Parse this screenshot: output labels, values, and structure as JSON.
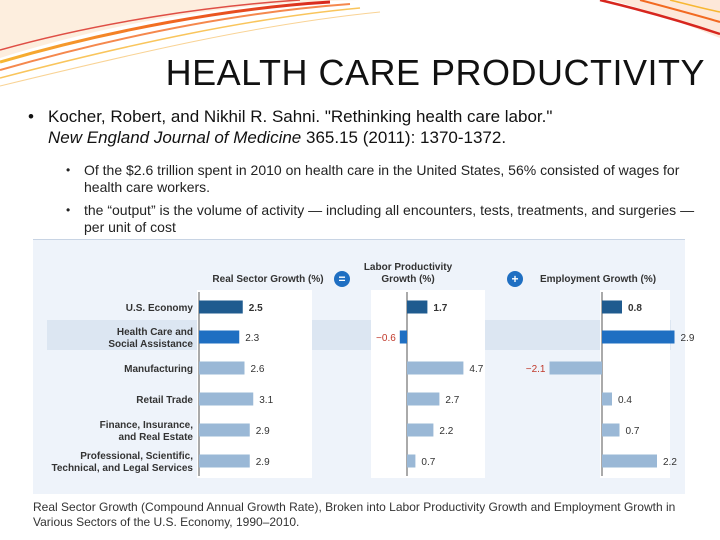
{
  "slide": {
    "title": "HEALTH CARE PRODUCTIVITY",
    "bullet_symbol": "•",
    "citation": {
      "before": "Kocher, Robert, and Nikhil R. Sahni. \"Rethinking health care labor.\"",
      "journal": "New England Journal of Medicine",
      "after": " 365.15 (2011): 1370-1372."
    },
    "sub_bullets": [
      "Of the $2.6 trillion spent in 2010 on health care in the United States, 56% consisted of wages for health care workers.",
      "the “output” is the volume of activity — including all encounters, tests, treatments, and surgeries — per unit of cost"
    ],
    "caption": "Real Sector Growth (Compound Annual Growth Rate), Broken into Labor Productivity Growth and Employment Growth in Various Sectors of the U.S. Economy, 1990–2010."
  },
  "colors": {
    "dark_bar": "#1f5b8f",
    "highlight_bar": "#1f6fc2",
    "light_bar": "#9ab8d6",
    "band": "#dce6f2",
    "panel": "#ffffff",
    "operator": "#1f6fc2",
    "negative_text": "#c0392b"
  },
  "chart_data": {
    "type": "bar",
    "operators": [
      "=",
      "+"
    ],
    "categories": [
      "U.S. Economy",
      "Health Care and\nSocial Assistance",
      "Manufacturing",
      "Retail Trade",
      "Finance, Insurance,\nand Real Estate",
      "Professional, Scientific,\nTechnical, and Legal Services"
    ],
    "highlight_index": 1,
    "series": [
      {
        "name": "Real Sector Growth (%)",
        "values": [
          2.5,
          2.3,
          2.6,
          3.1,
          2.9,
          2.9
        ],
        "labels": [
          "2.5",
          "2.3",
          "2.6",
          "3.1",
          "2.9",
          "2.9"
        ],
        "range": [
          0,
          4
        ]
      },
      {
        "name": "Labor Productivity\nGrowth (%)",
        "values": [
          1.7,
          -0.6,
          4.7,
          2.7,
          2.2,
          0.7
        ],
        "labels": [
          "1.7",
          "−0.6",
          "4.7",
          "2.7",
          "2.2",
          "0.7"
        ],
        "range": [
          -1,
          5
        ]
      },
      {
        "name": "Employment Growth (%)",
        "values": [
          0.8,
          2.9,
          -2.1,
          0.4,
          0.7,
          2.2
        ],
        "labels": [
          "0.8",
          "2.9",
          "−2.1",
          "0.4",
          "0.7",
          "2.2"
        ],
        "range": [
          -3,
          3.5
        ]
      }
    ]
  }
}
